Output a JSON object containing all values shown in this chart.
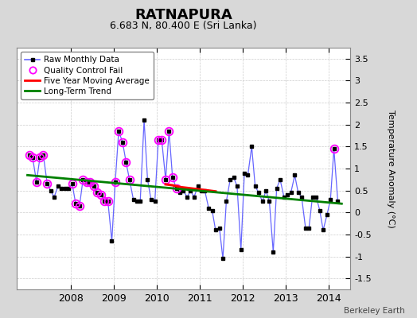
{
  "title": "RATNAPURA",
  "subtitle": "6.683 N, 80.400 E (Sri Lanka)",
  "ylabel": "Temperature Anomaly (°C)",
  "credit": "Berkeley Earth",
  "ylim": [
    -1.75,
    3.75
  ],
  "yticks": [
    -1.5,
    -1.0,
    -0.5,
    0.0,
    0.5,
    1.0,
    1.5,
    2.0,
    2.5,
    3.0,
    3.5
  ],
  "xlim_start": 2006.75,
  "xlim_end": 2014.5,
  "bg_color": "#d8d8d8",
  "plot_bg_color": "#ffffff",
  "raw_x": [
    2007.04,
    2007.12,
    2007.21,
    2007.29,
    2007.37,
    2007.46,
    2007.54,
    2007.62,
    2007.71,
    2007.79,
    2007.87,
    2007.96,
    2008.04,
    2008.12,
    2008.21,
    2008.29,
    2008.37,
    2008.46,
    2008.54,
    2008.62,
    2008.71,
    2008.79,
    2008.87,
    2008.96,
    2009.04,
    2009.12,
    2009.21,
    2009.29,
    2009.37,
    2009.46,
    2009.54,
    2009.62,
    2009.71,
    2009.79,
    2009.87,
    2009.96,
    2010.04,
    2010.12,
    2010.21,
    2010.29,
    2010.37,
    2010.46,
    2010.54,
    2010.62,
    2010.71,
    2010.79,
    2010.87,
    2010.96,
    2011.04,
    2011.12,
    2011.21,
    2011.29,
    2011.37,
    2011.46,
    2011.54,
    2011.62,
    2011.71,
    2011.79,
    2011.87,
    2011.96,
    2012.04,
    2012.12,
    2012.21,
    2012.29,
    2012.37,
    2012.46,
    2012.54,
    2012.62,
    2012.71,
    2012.79,
    2012.87,
    2012.96,
    2013.04,
    2013.12,
    2013.21,
    2013.29,
    2013.37,
    2013.46,
    2013.54,
    2013.62,
    2013.71,
    2013.79,
    2013.87,
    2013.96,
    2014.04,
    2014.12,
    2014.21
  ],
  "raw_y": [
    1.3,
    1.25,
    0.7,
    1.25,
    1.3,
    0.65,
    0.5,
    0.35,
    0.6,
    0.55,
    0.55,
    0.55,
    0.65,
    0.2,
    0.15,
    0.75,
    0.7,
    0.7,
    0.6,
    0.45,
    0.4,
    0.25,
    0.25,
    -0.65,
    0.7,
    1.85,
    1.6,
    1.15,
    0.75,
    0.3,
    0.25,
    0.25,
    2.1,
    0.75,
    0.3,
    0.25,
    1.65,
    1.65,
    0.75,
    1.85,
    0.8,
    0.55,
    0.45,
    0.5,
    0.35,
    0.5,
    0.35,
    0.6,
    0.5,
    0.5,
    0.1,
    0.05,
    -0.4,
    -0.35,
    -1.05,
    0.25,
    0.75,
    0.8,
    0.6,
    -0.85,
    0.9,
    0.85,
    1.5,
    0.6,
    0.45,
    0.25,
    0.5,
    0.25,
    -0.9,
    0.55,
    0.75,
    0.35,
    0.4,
    0.45,
    0.85,
    0.45,
    0.35,
    -0.35,
    -0.35,
    0.35,
    0.35,
    0.05,
    -0.4,
    -0.05,
    0.3,
    1.45,
    0.25
  ],
  "qc_fail_x": [
    2007.04,
    2007.12,
    2007.21,
    2007.29,
    2007.37,
    2007.46,
    2008.04,
    2008.12,
    2008.21,
    2008.29,
    2008.37,
    2008.46,
    2008.54,
    2008.62,
    2008.71,
    2008.79,
    2008.87,
    2009.04,
    2009.12,
    2009.21,
    2009.29,
    2009.37,
    2010.04,
    2010.12,
    2010.21,
    2010.29,
    2010.37,
    2010.46,
    2014.12
  ],
  "qc_fail_y": [
    1.3,
    1.25,
    0.7,
    1.25,
    1.3,
    0.65,
    0.65,
    0.2,
    0.15,
    0.75,
    0.7,
    0.7,
    0.6,
    0.45,
    0.4,
    0.25,
    0.25,
    0.7,
    1.85,
    1.6,
    1.15,
    0.75,
    1.65,
    1.65,
    0.75,
    1.85,
    0.8,
    0.55,
    1.45
  ],
  "moving_avg_x": [
    2010.21,
    2010.29,
    2010.37,
    2010.46,
    2010.54,
    2010.62,
    2010.71,
    2010.79,
    2010.87,
    2010.96,
    2011.04,
    2011.12,
    2011.21,
    2011.29,
    2011.37
  ],
  "moving_avg_y": [
    0.64,
    0.63,
    0.62,
    0.6,
    0.58,
    0.57,
    0.56,
    0.55,
    0.54,
    0.53,
    0.52,
    0.51,
    0.5,
    0.49,
    0.48
  ],
  "trend_x": [
    2007.0,
    2014.3
  ],
  "trend_y": [
    0.85,
    0.2
  ],
  "xticks": [
    2008,
    2009,
    2010,
    2011,
    2012,
    2013,
    2014
  ]
}
